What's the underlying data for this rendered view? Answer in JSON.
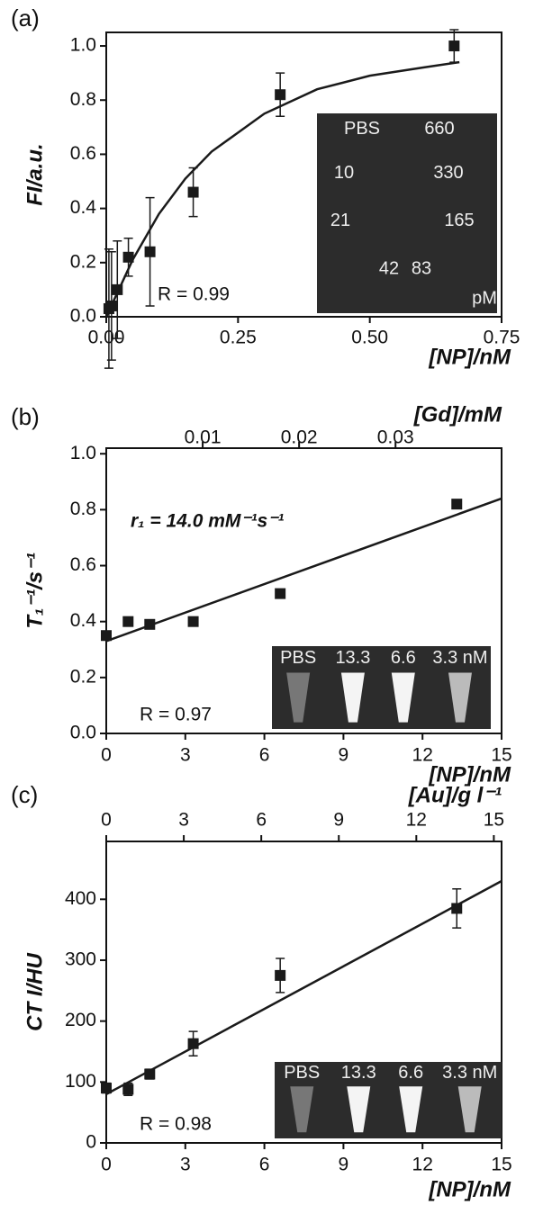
{
  "chart_data": [
    {
      "type": "scatter",
      "label": "(a)",
      "xlabel": "[NP]/nM",
      "ylabel": "FI/a.u.",
      "color": "#1a1a1a",
      "xlim": [
        0,
        0.75
      ],
      "xticks": [
        {
          "value": 0,
          "label": "0.00"
        },
        {
          "value": 0.25,
          "label": "0.25"
        },
        {
          "value": 0.5,
          "label": "0.50"
        },
        {
          "value": 0.75,
          "label": "0.75"
        }
      ],
      "ylim": [
        0,
        1.05
      ],
      "yticks": [
        {
          "value": 0,
          "label": "0.0"
        },
        0.2,
        0.4,
        0.6,
        0.8,
        {
          "value": 1,
          "label": "1.0"
        }
      ],
      "x": [
        0.005,
        0.01,
        0.021,
        0.042,
        0.083,
        0.165,
        0.33,
        0.66
      ],
      "values": [
        0.03,
        0.04,
        0.1,
        0.22,
        0.24,
        0.46,
        0.82,
        1.0
      ],
      "errors": [
        0.22,
        0.2,
        0.18,
        0.07,
        0.2,
        0.09,
        0.08,
        0.06
      ],
      "fit_x": [
        0,
        0.05,
        0.1,
        0.15,
        0.2,
        0.25,
        0.3,
        0.4,
        0.5,
        0.6,
        0.67
      ],
      "fit_y": [
        0,
        0.21,
        0.38,
        0.51,
        0.61,
        0.68,
        0.75,
        0.84,
        0.89,
        0.92,
        0.94
      ],
      "annotations": [
        "R = 0.99"
      ],
      "inset_labels": [
        "PBS",
        "660",
        "10",
        "330",
        "21",
        "165",
        "42",
        "83",
        "pM"
      ]
    },
    {
      "type": "scatter",
      "label": "(b)",
      "xlabel": "[NP]/nM",
      "ylabel": "T₁⁻¹/s⁻¹",
      "color": "#1a1a1a",
      "xlim": [
        0,
        15
      ],
      "xticks": [
        0,
        3,
        6,
        9,
        12,
        15
      ],
      "ylim": [
        0,
        1.02
      ],
      "yticks": [
        {
          "value": 0,
          "label": "0.0"
        },
        0.2,
        0.4,
        0.6,
        0.8,
        {
          "value": 1,
          "label": "1.0"
        }
      ],
      "x2label": "[Gd]/mM",
      "x2lim": [
        0,
        0.041
      ],
      "x2ticks": [
        0.01,
        0.02,
        0.03
      ],
      "x": [
        0,
        0.83,
        1.65,
        3.3,
        6.6,
        13.3
      ],
      "values": [
        0.35,
        0.4,
        0.39,
        0.4,
        0.5,
        0.82
      ],
      "fit_x": [
        0,
        15
      ],
      "fit_y": [
        0.33,
        0.84
      ],
      "annotations": [
        "r₁ = 14.0 mM⁻¹s⁻¹",
        "R = 0.97"
      ],
      "inset_labels": [
        "PBS",
        "13.3",
        "6.6",
        "3.3 nM"
      ]
    },
    {
      "type": "scatter",
      "label": "(c)",
      "xlabel": "[NP]/nM",
      "ylabel": "CT I/HU",
      "color": "#1a1a1a",
      "xlim": [
        0,
        15
      ],
      "xticks": [
        0,
        3,
        6,
        9,
        12,
        15
      ],
      "ylim": [
        0,
        495
      ],
      "yticks": [
        0,
        100,
        200,
        300,
        400
      ],
      "x2label": "[Au]/g l⁻¹",
      "x2lim": [
        0,
        15.3
      ],
      "x2ticks": [
        0,
        3,
        6,
        9,
        12,
        15
      ],
      "x": [
        0,
        0.83,
        1.65,
        3.3,
        6.6,
        13.3
      ],
      "values": [
        90,
        88,
        113,
        163,
        275,
        385
      ],
      "errors": [
        8,
        10,
        8,
        20,
        28,
        32
      ],
      "fit_x": [
        0,
        15
      ],
      "fit_y": [
        80,
        430
      ],
      "annotations": [
        "R = 0.98"
      ],
      "inset_labels": [
        "PBS",
        "13.3",
        "6.6",
        "3.3 nM"
      ]
    }
  ]
}
